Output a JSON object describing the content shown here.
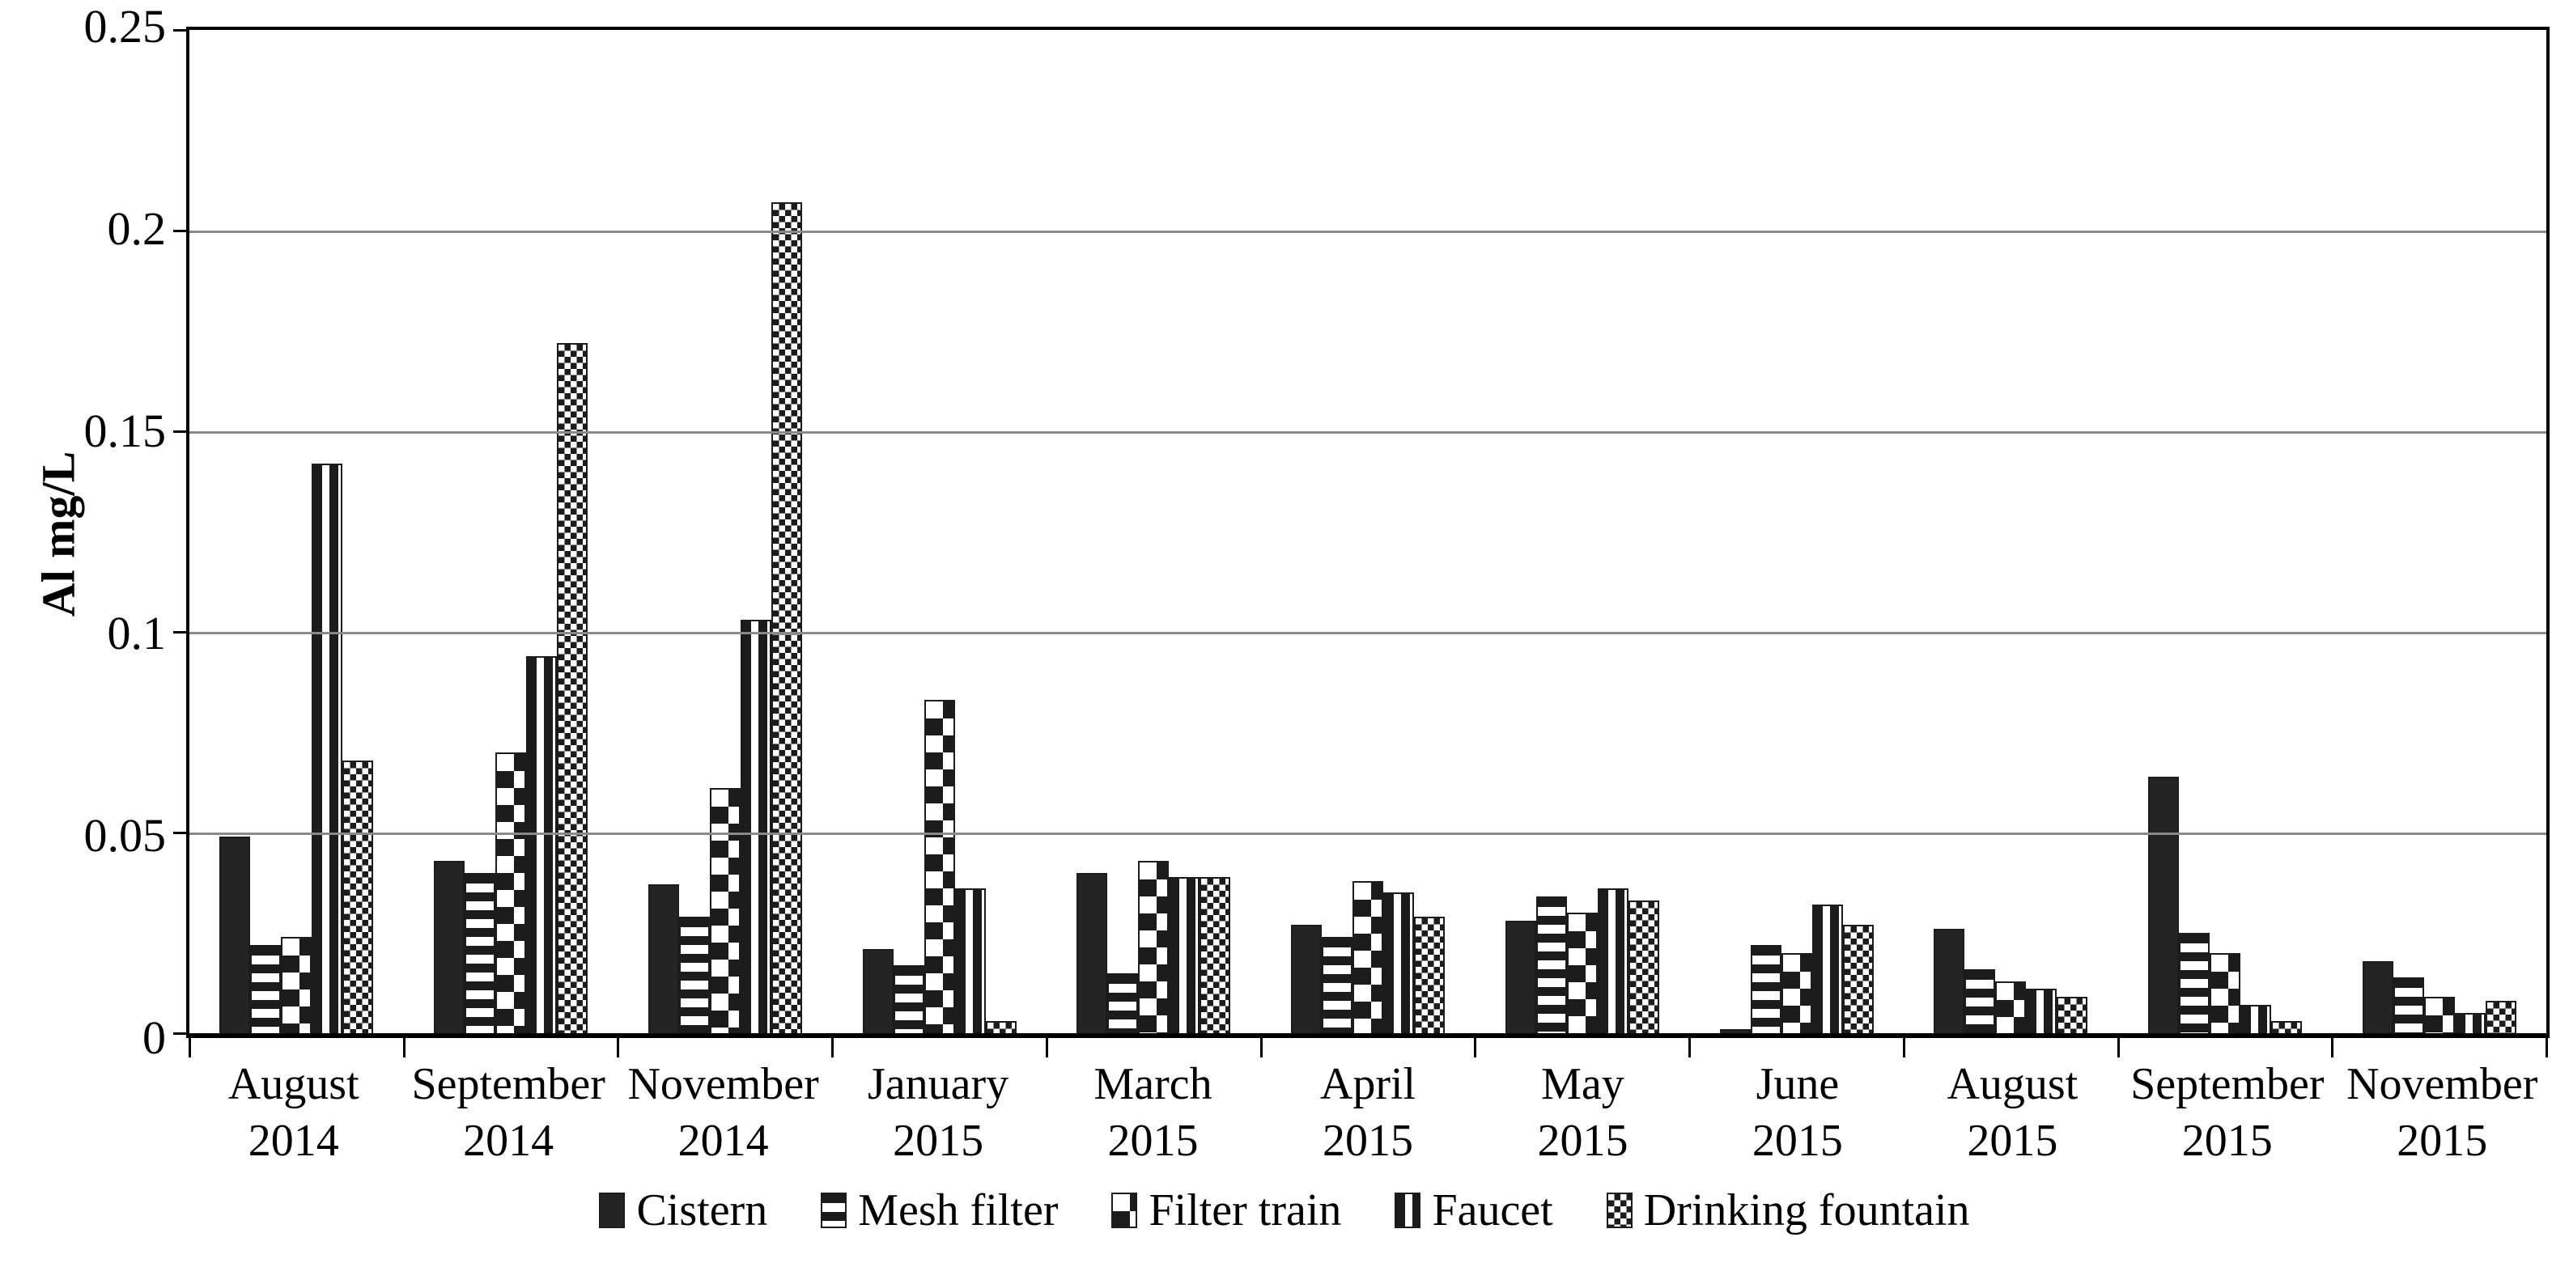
{
  "chart_data": {
    "type": "bar",
    "title": "",
    "xlabel": "",
    "ylabel": "Al mg/L",
    "ylim": [
      0,
      0.25
    ],
    "yticks": [
      {
        "label": "0.25",
        "value": 0.25
      },
      {
        "label": "0.2",
        "value": 0.2
      },
      {
        "label": "0.15",
        "value": 0.15
      },
      {
        "label": "0.1",
        "value": 0.1
      },
      {
        "label": "0.05",
        "value": 0.05
      },
      {
        "label": "0",
        "value": 0
      }
    ],
    "gridline_values": [
      0.05,
      0.1,
      0.15,
      0.2
    ],
    "grid": true,
    "legend_position": "bottom",
    "categories": [
      {
        "month": "August",
        "year": "2014"
      },
      {
        "month": "September",
        "year": "2014"
      },
      {
        "month": "November",
        "year": "2014"
      },
      {
        "month": "January",
        "year": "2015"
      },
      {
        "month": "March",
        "year": "2015"
      },
      {
        "month": "April",
        "year": "2015"
      },
      {
        "month": "May",
        "year": "2015"
      },
      {
        "month": "June",
        "year": "2015"
      },
      {
        "month": "August",
        "year": "2015"
      },
      {
        "month": "September",
        "year": "2015"
      },
      {
        "month": "November",
        "year": "2015"
      }
    ],
    "series": [
      {
        "name": "Cistern",
        "pattern": "solid",
        "values": [
          0.049,
          0.043,
          0.037,
          0.021,
          0.04,
          0.027,
          0.028,
          0.001,
          0.026,
          0.064,
          0.018
        ]
      },
      {
        "name": "Mesh filter",
        "pattern": "hstripes",
        "values": [
          0.022,
          0.04,
          0.029,
          0.017,
          0.015,
          0.024,
          0.034,
          0.022,
          0.016,
          0.025,
          0.014
        ]
      },
      {
        "name": "Filter train",
        "pattern": "checker",
        "values": [
          0.024,
          0.07,
          0.061,
          0.083,
          0.043,
          0.038,
          0.03,
          0.02,
          0.013,
          0.02,
          0.009
        ]
      },
      {
        "name": "Faucet",
        "pattern": "vstripes",
        "values": [
          0.142,
          0.094,
          0.103,
          0.036,
          0.039,
          0.035,
          0.036,
          0.032,
          0.011,
          0.007,
          0.005
        ]
      },
      {
        "name": "Drinking fountain",
        "pattern": "finechecker",
        "values": [
          0.068,
          0.172,
          0.207,
          0.003,
          0.039,
          0.029,
          0.033,
          0.027,
          0.009,
          0.003,
          0.008
        ]
      }
    ],
    "colors": {
      "bar_ink": "#1c1c1c",
      "gridline": "#8a8a8a",
      "axis": "#000000",
      "background": "#ffffff"
    }
  }
}
